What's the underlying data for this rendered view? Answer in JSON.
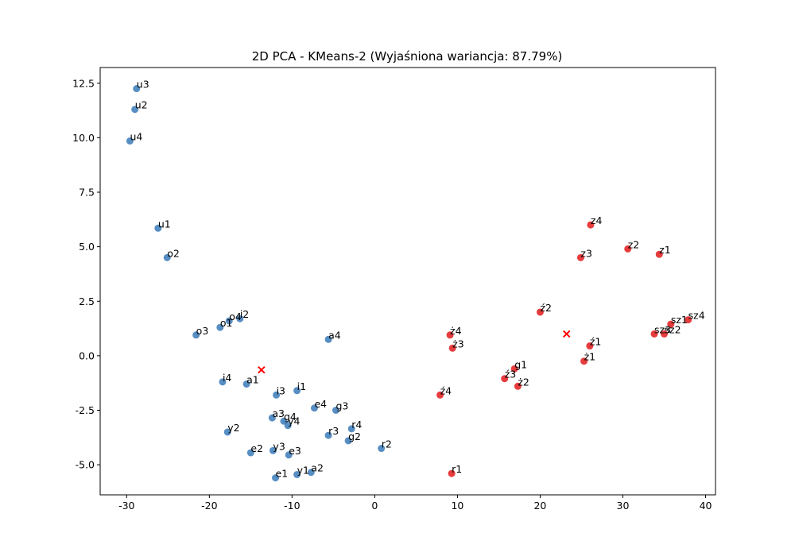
{
  "chart_data": {
    "type": "scatter",
    "title": "2D PCA - KMeans-2 (Wyjaśniona wariancja: 87.79%)",
    "xlabel": "",
    "ylabel": "",
    "xlim": [
      -33.2,
      41.2
    ],
    "ylim": [
      -6.38,
      13.22
    ],
    "xticks": [
      -30,
      -20,
      -10,
      0,
      10,
      20,
      30,
      40
    ],
    "yticks": [
      -5.0,
      -2.5,
      0.0,
      2.5,
      5.0,
      7.5,
      10.0,
      12.5
    ],
    "grid": false,
    "colors": {
      "cluster0": "#3a7ab8",
      "cluster1": "#e31a1c",
      "centroid": "#ff0000"
    },
    "series": [
      {
        "cluster": 0,
        "points": [
          {
            "label": "u3",
            "x": -28.8,
            "y": 12.25
          },
          {
            "label": "u2",
            "x": -29.0,
            "y": 11.3
          },
          {
            "label": "u4",
            "x": -29.6,
            "y": 9.85
          },
          {
            "label": "u1",
            "x": -26.2,
            "y": 5.85
          },
          {
            "label": "o2",
            "x": -25.1,
            "y": 4.5
          },
          {
            "label": "o4",
            "x": -17.6,
            "y": 1.6
          },
          {
            "label": "i2",
            "x": -16.3,
            "y": 1.7
          },
          {
            "label": "o1",
            "x": -18.7,
            "y": 1.3
          },
          {
            "label": "o3",
            "x": -21.6,
            "y": 0.95
          },
          {
            "label": "a4",
            "x": -5.6,
            "y": 0.75
          },
          {
            "label": "i4",
            "x": -18.4,
            "y": -1.2
          },
          {
            "label": "a1",
            "x": -15.5,
            "y": -1.3
          },
          {
            "label": "i3",
            "x": -11.9,
            "y": -1.8
          },
          {
            "label": "i1",
            "x": -9.4,
            "y": -1.6
          },
          {
            "label": "e4",
            "x": -7.3,
            "y": -2.4
          },
          {
            "label": "g3",
            "x": -4.7,
            "y": -2.5
          },
          {
            "label": "a3",
            "x": -12.4,
            "y": -2.85
          },
          {
            "label": "g4",
            "x": -11.0,
            "y": -3.0
          },
          {
            "label": "y4",
            "x": -10.5,
            "y": -3.2
          },
          {
            "label": "r4",
            "x": -2.8,
            "y": -3.35
          },
          {
            "label": "y2",
            "x": -17.8,
            "y": -3.5
          },
          {
            "label": "r3",
            "x": -5.6,
            "y": -3.65
          },
          {
            "label": "g2",
            "x": -3.2,
            "y": -3.9
          },
          {
            "label": "r2",
            "x": 0.8,
            "y": -4.25
          },
          {
            "label": "y3",
            "x": -12.3,
            "y": -4.35
          },
          {
            "label": "e2",
            "x": -15.0,
            "y": -4.45
          },
          {
            "label": "e3",
            "x": -10.4,
            "y": -4.55
          },
          {
            "label": "a2",
            "x": -7.7,
            "y": -5.35
          },
          {
            "label": "y1",
            "x": -9.4,
            "y": -5.45
          },
          {
            "label": "e1",
            "x": -12.0,
            "y": -5.6
          }
        ]
      },
      {
        "cluster": 1,
        "points": [
          {
            "label": "z4",
            "x": 26.1,
            "y": 6.0
          },
          {
            "label": "z2",
            "x": 30.6,
            "y": 4.9
          },
          {
            "label": "z1",
            "x": 34.4,
            "y": 4.65
          },
          {
            "label": "z3",
            "x": 24.9,
            "y": 4.5
          },
          {
            "label": "ź2",
            "x": 20.0,
            "y": 2.0
          },
          {
            "label": "sz4",
            "x": 37.9,
            "y": 1.65
          },
          {
            "label": "sz1",
            "x": 35.8,
            "y": 1.45
          },
          {
            "label": "sz3",
            "x": 33.8,
            "y": 1.0
          },
          {
            "label": "sz2",
            "x": 35.0,
            "y": 1.0
          },
          {
            "label": "ż4",
            "x": 9.1,
            "y": 0.95
          },
          {
            "label": "ź1",
            "x": 26.0,
            "y": 0.45
          },
          {
            "label": "ż3",
            "x": 9.4,
            "y": 0.35
          },
          {
            "label": "ż1",
            "x": 25.3,
            "y": -0.25
          },
          {
            "label": "g1",
            "x": 16.9,
            "y": -0.6
          },
          {
            "label": "ź3",
            "x": 15.7,
            "y": -1.05
          },
          {
            "label": "ż2",
            "x": 17.3,
            "y": -1.4
          },
          {
            "label": "ź4",
            "x": 7.9,
            "y": -1.8
          },
          {
            "label": "r1",
            "x": 9.3,
            "y": -5.4
          }
        ]
      }
    ],
    "centroids": [
      {
        "x": -13.7,
        "y": -0.65
      },
      {
        "x": 23.2,
        "y": 1.0
      }
    ]
  }
}
